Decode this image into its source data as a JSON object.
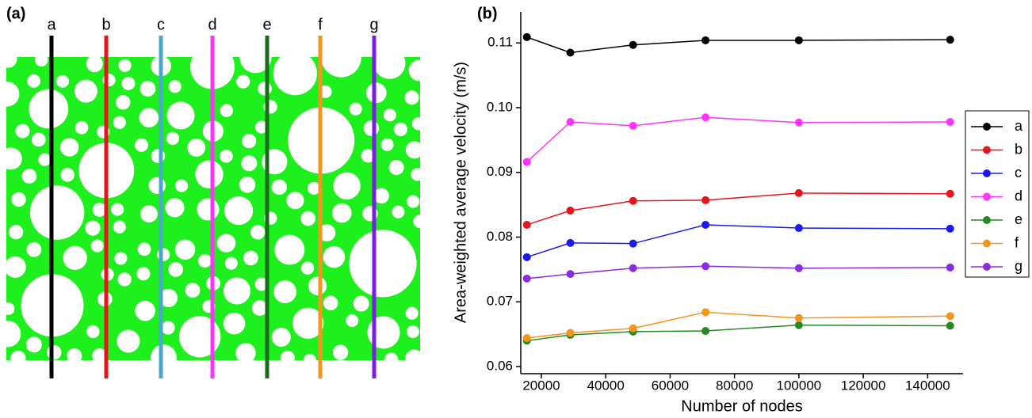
{
  "panel_a": {
    "label": "(a)",
    "lines": [
      {
        "name": "a",
        "color": "#000000"
      },
      {
        "name": "b",
        "color": "#e8141b"
      },
      {
        "name": "c",
        "color": "#4aa8c8"
      },
      {
        "name": "d",
        "color": "#ff33ff"
      },
      {
        "name": "e",
        "color": "#1a6b1a"
      },
      {
        "name": "f",
        "color": "#f7941d"
      },
      {
        "name": "g",
        "color": "#7a1fe0"
      }
    ]
  },
  "chart_data": {
    "type": "line",
    "panel_label": "(b)",
    "x_label": "Number of nodes",
    "y_label": "Area-weighted average velocity (m/s)",
    "x": [
      15500,
      29000,
      48500,
      71000,
      100000,
      147000
    ],
    "xlim": [
      13600,
      151000
    ],
    "xticks": [
      20000,
      40000,
      60000,
      80000,
      100000,
      120000,
      140000
    ],
    "ylim": [
      0.0589,
      0.1148
    ],
    "yticks": [
      0.06,
      0.07,
      0.08,
      0.09,
      {
        "value": 0.1,
        "label": "0.10"
      },
      0.11
    ],
    "grid": false,
    "legend": "right",
    "series": [
      {
        "name": "a",
        "color": "#000000",
        "values": [
          0.1109,
          0.1085,
          0.1097,
          0.1104,
          0.1104,
          0.1105
        ]
      },
      {
        "name": "b",
        "color": "#e8141b",
        "values": [
          0.0819,
          0.0841,
          0.0856,
          0.0857,
          0.0868,
          0.0867
        ]
      },
      {
        "name": "c",
        "color": "#1a1aee",
        "values": [
          0.0769,
          0.0791,
          0.079,
          0.0819,
          0.0814,
          0.0813
        ]
      },
      {
        "name": "d",
        "color": "#ff33ff",
        "values": [
          0.0916,
          0.0978,
          0.0972,
          0.0985,
          0.0977,
          0.0978
        ]
      },
      {
        "name": "e",
        "color": "#228b22",
        "values": [
          0.064,
          0.0649,
          0.0654,
          0.0655,
          0.0664,
          0.0663
        ]
      },
      {
        "name": "f",
        "color": "#f7941d",
        "values": [
          0.0644,
          0.0652,
          0.0659,
          0.0684,
          0.0675,
          0.0678
        ]
      },
      {
        "name": "g",
        "color": "#8b2be2",
        "values": [
          0.0736,
          0.0743,
          0.0752,
          0.0755,
          0.0752,
          0.0753
        ]
      }
    ]
  }
}
